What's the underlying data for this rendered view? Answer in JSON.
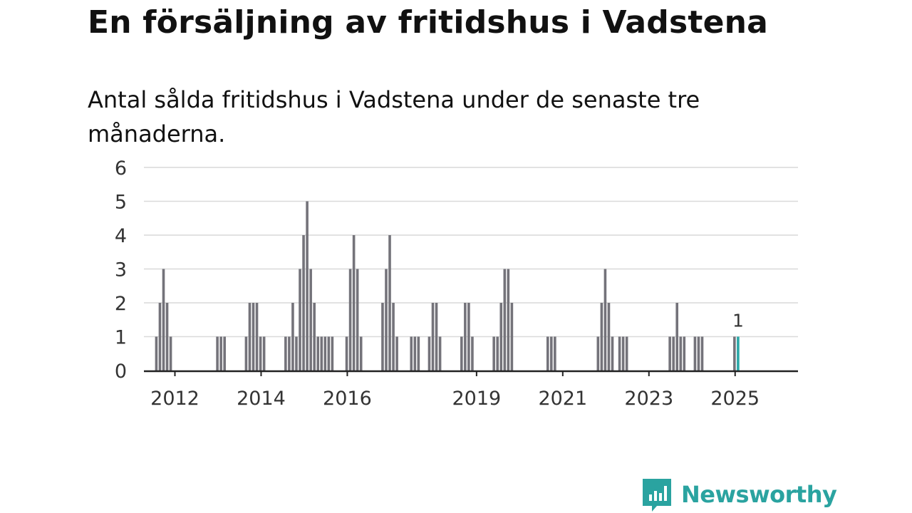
{
  "title": "En försäljning av fritidshus i Vadstena",
  "subtitle": "Antal sålda fritidshus i Vadstena under de senaste tre månaderna.",
  "brand": "Newsworthy",
  "colors": {
    "bar": "#74737a",
    "highlight": "#2aa8a8",
    "grid": "#d9d9d9",
    "axis": "#222222",
    "brand": "#2aa3a0"
  },
  "icons": {
    "logo": "newsworthy-bar-chart-bubble-icon"
  },
  "chart_data": {
    "type": "bar",
    "x_type": "month",
    "ylim": [
      0,
      6
    ],
    "yticks": [
      0,
      1,
      2,
      3,
      4,
      5,
      6
    ],
    "xticks": [
      "2012",
      "2014",
      "2016",
      "2019",
      "2021",
      "2023",
      "2025"
    ],
    "grid": true,
    "highlight_label": "1",
    "data": [
      [
        "2012-04",
        1
      ],
      [
        "2012-05",
        2
      ],
      [
        "2012-06",
        3
      ],
      [
        "2012-07",
        2
      ],
      [
        "2012-08",
        1
      ],
      [
        "2013-09",
        1
      ],
      [
        "2013-10",
        1
      ],
      [
        "2013-11",
        1
      ],
      [
        "2014-05",
        1
      ],
      [
        "2014-06",
        2
      ],
      [
        "2014-07",
        2
      ],
      [
        "2014-08",
        2
      ],
      [
        "2014-09",
        1
      ],
      [
        "2014-10",
        1
      ],
      [
        "2015-04",
        1
      ],
      [
        "2015-05",
        1
      ],
      [
        "2015-06",
        2
      ],
      [
        "2015-07",
        1
      ],
      [
        "2015-08",
        3
      ],
      [
        "2015-09",
        4
      ],
      [
        "2015-10",
        5
      ],
      [
        "2015-11",
        3
      ],
      [
        "2015-12",
        2
      ],
      [
        "2016-01",
        1
      ],
      [
        "2016-02",
        1
      ],
      [
        "2016-03",
        1
      ],
      [
        "2016-04",
        1
      ],
      [
        "2016-05",
        1
      ],
      [
        "2016-09",
        1
      ],
      [
        "2016-10",
        3
      ],
      [
        "2016-11",
        4
      ],
      [
        "2016-12",
        3
      ],
      [
        "2017-01",
        1
      ],
      [
        "2017-07",
        2
      ],
      [
        "2017-08",
        3
      ],
      [
        "2017-09",
        4
      ],
      [
        "2017-10",
        2
      ],
      [
        "2017-11",
        1
      ],
      [
        "2018-03",
        1
      ],
      [
        "2018-04",
        1
      ],
      [
        "2018-05",
        1
      ],
      [
        "2018-08",
        1
      ],
      [
        "2018-09",
        2
      ],
      [
        "2018-10",
        2
      ],
      [
        "2018-11",
        1
      ],
      [
        "2019-05",
        1
      ],
      [
        "2019-06",
        2
      ],
      [
        "2019-07",
        2
      ],
      [
        "2019-08",
        1
      ],
      [
        "2020-02",
        1
      ],
      [
        "2020-03",
        1
      ],
      [
        "2020-04",
        2
      ],
      [
        "2020-05",
        3
      ],
      [
        "2020-06",
        3
      ],
      [
        "2020-07",
        2
      ],
      [
        "2021-05",
        1
      ],
      [
        "2021-06",
        1
      ],
      [
        "2021-07",
        1
      ],
      [
        "2022-07",
        1
      ],
      [
        "2022-08",
        2
      ],
      [
        "2022-09",
        3
      ],
      [
        "2022-10",
        2
      ],
      [
        "2022-11",
        1
      ],
      [
        "2023-01",
        1
      ],
      [
        "2023-02",
        1
      ],
      [
        "2023-03",
        1
      ],
      [
        "2024-03",
        1
      ],
      [
        "2024-04",
        1
      ],
      [
        "2024-05",
        2
      ],
      [
        "2024-06",
        1
      ],
      [
        "2024-07",
        1
      ],
      [
        "2024-10",
        1
      ],
      [
        "2024-11",
        1
      ],
      [
        "2024-12",
        1
      ],
      [
        "2025-09",
        1
      ],
      [
        "2025-10",
        1
      ]
    ],
    "highlight": "2025-10"
  }
}
